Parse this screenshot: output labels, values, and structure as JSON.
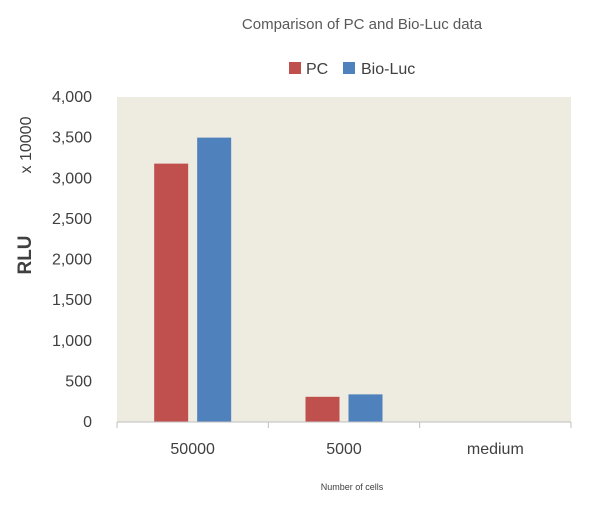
{
  "chart_data": {
    "type": "bar",
    "title": "Comparison of PC and Bio-Luc data",
    "xlabel": "Number of cells",
    "ylabel": "RLU",
    "yunit": "x 10000",
    "categories": [
      "50000",
      "5000",
      "medium"
    ],
    "series": [
      {
        "name": "PC",
        "color": "#c0504d",
        "values": [
          3180,
          310,
          0
        ]
      },
      {
        "name": "Bio-Luc",
        "color": "#4f81bd",
        "values": [
          3500,
          340,
          0
        ]
      }
    ],
    "ylim": [
      0,
      4000
    ],
    "yticks": [
      "0",
      "500",
      "1,000",
      "1,500",
      "2,000",
      "2,500",
      "3,000",
      "3,500",
      "4,000"
    ],
    "ytick_values": [
      0,
      500,
      1000,
      1500,
      2000,
      2500,
      3000,
      3500,
      4000
    ],
    "legend_position": "top",
    "grid": false,
    "plot_background": "#eeebe0"
  }
}
